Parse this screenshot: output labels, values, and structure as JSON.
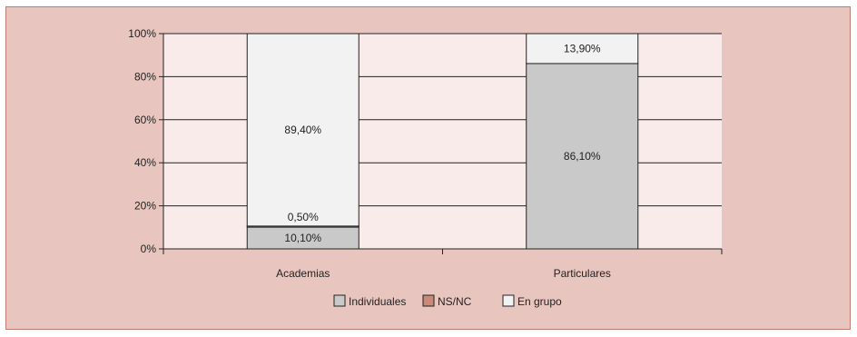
{
  "chart_data": {
    "type": "bar",
    "stacked": true,
    "title": "",
    "xlabel": "",
    "ylabel": "",
    "ylim": [
      0,
      100
    ],
    "yticks": [
      "0%",
      "20%",
      "40%",
      "60%",
      "80%",
      "100%"
    ],
    "categories": [
      "Academias",
      "Particulares"
    ],
    "series": [
      {
        "name": "Individuales",
        "values": [
          10.1,
          86.1
        ],
        "labels": [
          "10,10%",
          "86,10%"
        ],
        "color": "#c9c9c9"
      },
      {
        "name": "NS/NC",
        "values": [
          0.5,
          0
        ],
        "labels": [
          "0,50%",
          ""
        ],
        "color": "#c98a78"
      },
      {
        "name": "En grupo",
        "values": [
          89.4,
          13.9
        ],
        "labels": [
          "89,40%",
          "13,90%"
        ],
        "color": "#f2f2f2"
      }
    ],
    "grid": true,
    "legend_position": "bottom",
    "colors": {
      "frame_background": "#e8c6bf",
      "plot_background": "#f9ebea",
      "grid": "#222222"
    }
  }
}
